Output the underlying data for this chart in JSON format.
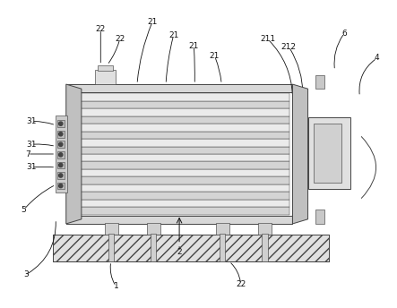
{
  "bg_color": "#ffffff",
  "lc": "#444444",
  "figsize": [
    4.43,
    3.44
  ],
  "dpi": 100,
  "xlim": [
    0,
    10
  ],
  "ylim": [
    0,
    8
  ]
}
